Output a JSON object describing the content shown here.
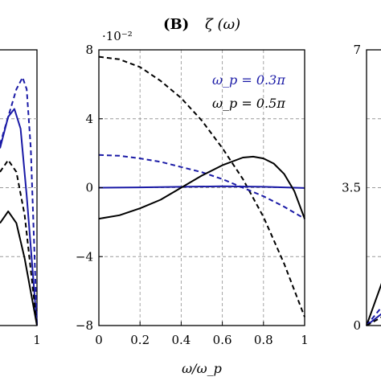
{
  "chart_data": [
    {
      "panel": "B",
      "type": "line",
      "title_label": "(B)",
      "title_text": "ζ (ω)",
      "y_scale_note": "·10⁻²",
      "xlabel": "ω/ω_p",
      "xlim": [
        0,
        1
      ],
      "ylim": [
        -8,
        8
      ],
      "x_ticks": [
        "0",
        "0.2",
        "0.4",
        "0.6",
        "0.8",
        "1"
      ],
      "y_ticks": [
        "8",
        "4",
        "0",
        "−4",
        "−8"
      ],
      "y_tick_values": [
        8,
        4,
        0,
        -4,
        -8
      ],
      "x_tick_values": [
        0,
        0.2,
        0.4,
        0.6,
        0.8,
        1
      ],
      "grid": true,
      "legend": [
        {
          "text": "ω_p = 0.3π",
          "color": "#1a1aa6"
        },
        {
          "text": "ω_p = 0.5π",
          "color": "#000000"
        }
      ],
      "series": [
        {
          "color": "#000000",
          "style": "dashed",
          "x": [
            0,
            0.1,
            0.2,
            0.3,
            0.4,
            0.5,
            0.6,
            0.7,
            0.8,
            0.9,
            1.0
          ],
          "y": [
            7.6,
            7.45,
            7.0,
            6.2,
            5.2,
            3.9,
            2.3,
            0.5,
            -1.7,
            -4.4,
            -7.5
          ]
        },
        {
          "color": "#1a1aa6",
          "style": "dashed",
          "x": [
            0,
            0.1,
            0.2,
            0.3,
            0.4,
            0.5,
            0.6,
            0.7,
            0.8,
            0.9,
            1.0
          ],
          "y": [
            1.9,
            1.85,
            1.7,
            1.5,
            1.2,
            0.9,
            0.5,
            0.0,
            -0.5,
            -1.1,
            -1.8
          ]
        },
        {
          "color": "#1a1aa6",
          "style": "solid",
          "x": [
            0,
            0.2,
            0.4,
            0.6,
            0.8,
            1.0
          ],
          "y": [
            0.0,
            0.02,
            0.05,
            0.08,
            0.05,
            -0.02
          ]
        },
        {
          "color": "#000000",
          "style": "solid",
          "x": [
            0,
            0.1,
            0.2,
            0.3,
            0.4,
            0.5,
            0.6,
            0.7,
            0.75,
            0.8,
            0.85,
            0.9,
            0.95,
            1.0
          ],
          "y": [
            -1.8,
            -1.6,
            -1.2,
            -0.7,
            0.0,
            0.7,
            1.3,
            1.75,
            1.8,
            1.7,
            1.4,
            0.8,
            -0.2,
            -1.8
          ]
        }
      ]
    },
    {
      "panel": "A-partial",
      "type": "line",
      "x_ticks": [
        "1"
      ],
      "x_tick_values": [
        1
      ],
      "xlim": [
        0.82,
        1
      ],
      "ylim": [
        0,
        7
      ],
      "series": [
        {
          "color": "#1a1aa6",
          "style": "dashed",
          "x": [
            0.82,
            0.86,
            0.9,
            0.93,
            0.95,
            0.97,
            1.0
          ],
          "y": [
            4.6,
            5.3,
            6.0,
            6.3,
            6.0,
            4.5,
            0.0
          ]
        },
        {
          "color": "#1a1aa6",
          "style": "solid",
          "x": [
            0.82,
            0.86,
            0.89,
            0.92,
            0.95,
            1.0
          ],
          "y": [
            4.5,
            5.3,
            5.5,
            5.0,
            3.3,
            0.0
          ]
        },
        {
          "color": "#000000",
          "style": "dashed",
          "x": [
            0.82,
            0.86,
            0.9,
            0.94,
            1.0
          ],
          "y": [
            3.9,
            4.2,
            3.9,
            2.8,
            0.0
          ]
        },
        {
          "color": "#000000",
          "style": "solid",
          "x": [
            0.82,
            0.86,
            0.9,
            0.94,
            1.0
          ],
          "y": [
            2.6,
            2.9,
            2.6,
            1.7,
            0.0
          ]
        }
      ]
    },
    {
      "panel": "C-partial",
      "type": "line",
      "y_ticks": [
        "7",
        "3.5",
        "0"
      ],
      "y_tick_values": [
        7,
        3.5,
        0
      ],
      "xlim": [
        0,
        0.2
      ],
      "ylim": [
        0,
        7
      ],
      "series": [
        {
          "color": "#000000",
          "style": "solid",
          "x": [
            0,
            0.2
          ],
          "y": [
            0,
            1.25
          ]
        },
        {
          "color": "#1a1aa6",
          "style": "dashed",
          "x": [
            0,
            0.2
          ],
          "y": [
            0,
            0.55
          ]
        },
        {
          "color": "#1a1aa6",
          "style": "solid",
          "x": [
            0,
            0.2
          ],
          "y": [
            0,
            0.35
          ]
        },
        {
          "color": "#000000",
          "style": "dashed",
          "x": [
            0,
            0.2
          ],
          "y": [
            0,
            0.25
          ]
        }
      ]
    }
  ]
}
